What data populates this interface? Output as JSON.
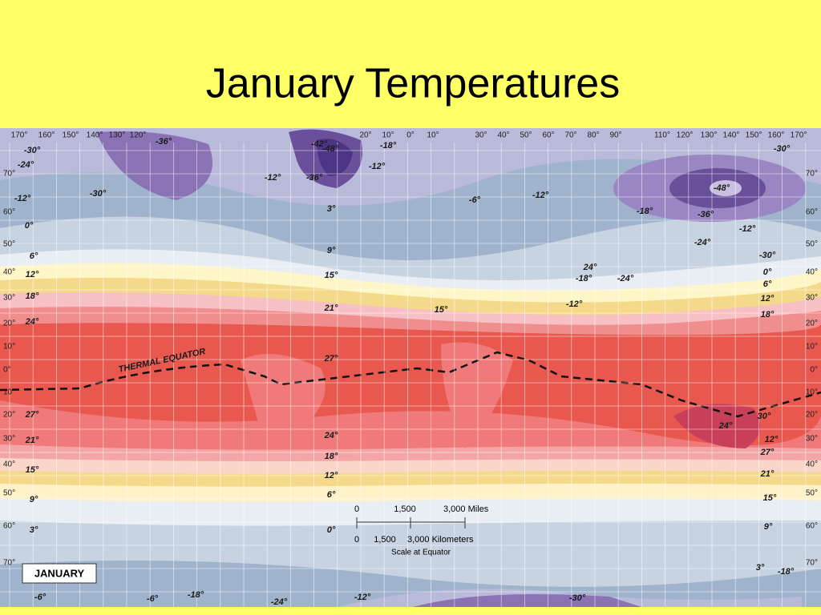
{
  "header": {
    "title": "January Temperatures"
  },
  "map": {
    "month_label": "JANUARY",
    "equator_label": "THERMAL EQUATOR",
    "longitude_labels": [
      "170°",
      "160°",
      "150°",
      "140°",
      "130°",
      "120°",
      "20°",
      "10°",
      "0°",
      "10°",
      "30°",
      "40°",
      "50°",
      "60°",
      "70°",
      "80°",
      "90°",
      "110°",
      "120°",
      "130°",
      "140°",
      "150°",
      "160°",
      "170°"
    ],
    "latitude_labels_left": [
      "70°",
      "60°",
      "50°",
      "40°",
      "30°",
      "20°",
      "10°",
      "0°",
      "10°",
      "20°",
      "30°",
      "40°",
      "50°",
      "60°",
      "70°"
    ],
    "latitude_labels_right": [
      "70°",
      "60°",
      "50°",
      "40°",
      "30°",
      "20°",
      "10°",
      "0°",
      "10°",
      "20°",
      "30°",
      "40°",
      "50°",
      "60°",
      "70°"
    ],
    "isotherm_labels": [
      "-30°",
      "-24°",
      "-12°",
      "-30°",
      "0°",
      "6°",
      "12°",
      "18°",
      "24°",
      "27°",
      "21°",
      "15°",
      "9°",
      "3°",
      "-6°",
      "-36°",
      "-42°",
      "-48°",
      "-36°",
      "-12°",
      "3°",
      "9°",
      "15°",
      "21°",
      "27°",
      "24°",
      "18°",
      "12°",
      "6°",
      "0°",
      "-18°",
      "-12°",
      "-6°",
      "-12°",
      "-18°",
      "-30°",
      "-48°",
      "-36°",
      "-24°",
      "-12°",
      "-30°",
      "0°",
      "6°",
      "12°",
      "18°",
      "24°",
      "-18°",
      "-24°",
      "-12°",
      "15°",
      "12°",
      "24°",
      "30°",
      "27°",
      "21°",
      "15°",
      "9°",
      "3°",
      "-18°",
      "-6°",
      "-18°",
      "-24°",
      "-12°",
      "-30°"
    ],
    "scale": {
      "miles": [
        "0",
        "1,500",
        "3,000 Miles"
      ],
      "kilometers": [
        "0",
        "1,500",
        "3,000 Kilometers"
      ],
      "caption": "Scale at Equator"
    }
  }
}
